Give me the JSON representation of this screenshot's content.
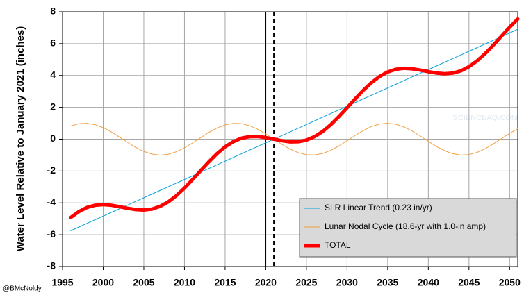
{
  "chart_data": {
    "type": "line",
    "y_label": "Water Level Relative to January 2021 (inches)",
    "credit": "@BMcNoldy",
    "watermark": "SCIENCEAQ.COM",
    "x": [
      1996,
      1997,
      1998,
      1999,
      2000,
      2001,
      2002,
      2003,
      2004,
      2005,
      2006,
      2007,
      2008,
      2009,
      2010,
      2011,
      2012,
      2013,
      2014,
      2015,
      2016,
      2017,
      2018,
      2019,
      2020,
      2021,
      2022,
      2023,
      2024,
      2025,
      2026,
      2027,
      2028,
      2029,
      2030,
      2031,
      2032,
      2033,
      2034,
      2035,
      2036,
      2037,
      2038,
      2039,
      2040,
      2041,
      2042,
      2043,
      2044,
      2045,
      2046,
      2047,
      2048,
      2049,
      2050,
      2051
    ],
    "series": [
      {
        "name": "SLR Linear Trend (0.23 in/yr)",
        "color": "#00a0dc",
        "width": 1,
        "values": [
          -5.75,
          -5.52,
          -5.29,
          -5.06,
          -4.83,
          -4.6,
          -4.37,
          -4.14,
          -3.91,
          -3.68,
          -3.45,
          -3.22,
          -2.99,
          -2.76,
          -2.53,
          -2.3,
          -2.07,
          -1.84,
          -1.61,
          -1.38,
          -1.15,
          -0.92,
          -0.69,
          -0.46,
          -0.23,
          0,
          0.23,
          0.46,
          0.69,
          0.92,
          1.15,
          1.38,
          1.61,
          1.84,
          2.07,
          2.3,
          2.53,
          2.76,
          2.99,
          3.22,
          3.45,
          3.68,
          3.91,
          4.14,
          4.37,
          4.6,
          4.83,
          5.06,
          5.29,
          5.52,
          5.75,
          5.98,
          6.21,
          6.44,
          6.67,
          6.9
        ]
      },
      {
        "name": "Lunar Nodal Cycle (18.6-yr with 1.0-in amp)",
        "color": "#f0a040",
        "width": 1,
        "values": [
          0.83,
          0.968,
          0.997,
          0.912,
          0.725,
          0.455,
          0.135,
          -0.202,
          -0.514,
          -0.769,
          -0.938,
          -1.0,
          -0.949,
          -0.791,
          -0.543,
          -0.234,
          0.101,
          0.425,
          0.701,
          0.898,
          0.993,
          0.976,
          0.848,
          0.625,
          0.331,
          0,
          -0.331,
          -0.625,
          -0.848,
          -0.976,
          -0.993,
          -0.898,
          -0.701,
          -0.425,
          -0.101,
          0.234,
          0.543,
          0.791,
          0.949,
          1.0,
          0.938,
          0.769,
          0.514,
          0.202,
          -0.135,
          -0.455,
          -0.725,
          -0.912,
          -0.997,
          -0.968,
          -0.83,
          -0.598,
          -0.297,
          0.034,
          0.363,
          0.651
        ]
      },
      {
        "name": "TOTAL",
        "color": "#ff0000",
        "width": 5,
        "values": [
          -4.92,
          -4.55,
          -4.29,
          -4.15,
          -4.11,
          -4.15,
          -4.24,
          -4.34,
          -4.42,
          -4.45,
          -4.39,
          -4.22,
          -3.94,
          -3.55,
          -3.07,
          -2.53,
          -1.97,
          -1.42,
          -0.91,
          -0.48,
          -0.16,
          0.06,
          0.16,
          0.17,
          0.1,
          0,
          -0.1,
          -0.17,
          -0.16,
          -0.06,
          0.16,
          0.48,
          0.91,
          1.42,
          1.97,
          2.53,
          3.07,
          3.55,
          3.94,
          4.22,
          4.39,
          4.45,
          4.42,
          4.34,
          4.24,
          4.15,
          4.11,
          4.15,
          4.29,
          4.55,
          4.92,
          5.38,
          5.91,
          6.47,
          7.03,
          7.55
        ]
      }
    ],
    "xlim": [
      1995,
      2051
    ],
    "ylim": [
      -8,
      8
    ],
    "xticks": [
      1995,
      2000,
      2005,
      2010,
      2015,
      2020,
      2025,
      2030,
      2035,
      2040,
      2045,
      2050
    ],
    "yticks": [
      -8,
      -6,
      -4,
      -2,
      0,
      2,
      4,
      6,
      8
    ],
    "grid": true,
    "vlines": [
      {
        "x": 2020,
        "dashed": false
      },
      {
        "x": 2021,
        "dashed": true
      }
    ],
    "legend": "lower-right"
  }
}
